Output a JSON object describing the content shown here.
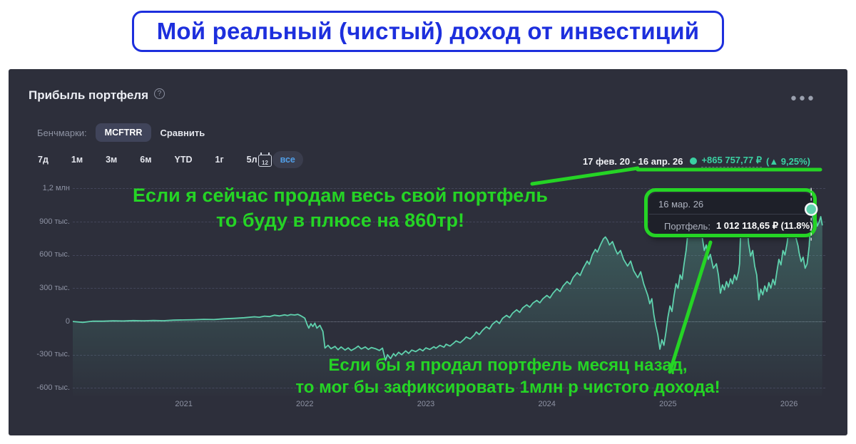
{
  "page": {
    "title": "Мой реальный (чистый) доход от инвестиций",
    "title_color": "#1d2fdd"
  },
  "panel": {
    "title": "Прибыль портфеля",
    "benchmarks_label": "Бенчмарки:",
    "benchmark_value": "MCFTRR",
    "compare_label": "Сравнить",
    "ranges": [
      "7д",
      "1м",
      "3м",
      "6м",
      "YTD",
      "1г",
      "5л",
      "все"
    ],
    "active_range": "все",
    "calendar_day": "12",
    "period": "17 фев. 20 - 16 апр. 26",
    "total_profit": "+865 757,77 ₽",
    "total_percent": "(▲ 9,25%)",
    "accent_teal": "#3bd0a2"
  },
  "tooltip": {
    "date": "16 мар. 26",
    "series_label": "Портфель:",
    "value": "1 012 118,65 ₽ (11.8%)"
  },
  "annotations": {
    "color": "#25d425",
    "note1_line1": "Если я сейчас продам весь свой портфель",
    "note1_line2": "то буду в плюсе на 860тр!",
    "note2_line1": "Если бы я продал портфель месяц назад,",
    "note2_line2": "то мог бы зафиксировать 1млн р чистого дохода!"
  },
  "chart_data": {
    "type": "area",
    "title": "Прибыль портфеля",
    "x_unit": "months since Feb 2020",
    "y_unit": "thousand RUB",
    "xlim": [
      0,
      74.6
    ],
    "ylim": [
      -668,
      1260
    ],
    "grid": true,
    "line_color": "#5fd1ad",
    "y_ticks": [
      {
        "label": "1,2 млн",
        "value": 1200
      },
      {
        "label": "900 тыс.",
        "value": 900
      },
      {
        "label": "600 тыс.",
        "value": 600
      },
      {
        "label": "300 тыс.",
        "value": 300
      },
      {
        "label": "0",
        "value": 0
      },
      {
        "label": "-300 тыс.",
        "value": -300
      },
      {
        "label": "-600 тыс.",
        "value": -600
      }
    ],
    "x_ticks": [
      {
        "label": "2021",
        "value": 11
      },
      {
        "label": "2022",
        "value": 23
      },
      {
        "label": "2023",
        "value": 35
      },
      {
        "label": "2024",
        "value": 47
      },
      {
        "label": "2025",
        "value": 59
      },
      {
        "label": "2026",
        "value": 71
      }
    ],
    "markers": [
      {
        "x": 73.2,
        "y": 1012,
        "label": "16 мар. 26",
        "value": "1 012 118,65 ₽ (11.8%)"
      }
    ],
    "end_point": {
      "x": 74.3,
      "y": 866,
      "label": "16 апр. 26",
      "value": "+865 757,77 ₽ (9,25%)"
    },
    "points": [
      [
        0,
        0
      ],
      [
        1,
        -8
      ],
      [
        2,
        3
      ],
      [
        3,
        2
      ],
      [
        4,
        6
      ],
      [
        5,
        4
      ],
      [
        6,
        8
      ],
      [
        7,
        6
      ],
      [
        8,
        9
      ],
      [
        9,
        7
      ],
      [
        10,
        12
      ],
      [
        11,
        14
      ],
      [
        12,
        16
      ],
      [
        13,
        19
      ],
      [
        14,
        17
      ],
      [
        15,
        24
      ],
      [
        16,
        28
      ],
      [
        17,
        34
      ],
      [
        18,
        42
      ],
      [
        18.5,
        38
      ],
      [
        19,
        48
      ],
      [
        19.5,
        44
      ],
      [
        20,
        56
      ],
      [
        20.5,
        50
      ],
      [
        21,
        60
      ],
      [
        21.3,
        54
      ],
      [
        21.6,
        62
      ],
      [
        22,
        58
      ],
      [
        22.3,
        64
      ],
      [
        22.6,
        52
      ],
      [
        23,
        30
      ],
      [
        23.2,
        -20
      ],
      [
        23.4,
        -60
      ],
      [
        23.6,
        -20
      ],
      [
        23.8,
        -45
      ],
      [
        24,
        -15
      ],
      [
        24.2,
        -60
      ],
      [
        24.5,
        -35
      ],
      [
        24.8,
        -90
      ],
      [
        25,
        -240
      ],
      [
        25.3,
        -215
      ],
      [
        25.6,
        -245
      ],
      [
        26,
        -225
      ],
      [
        26.3,
        -255
      ],
      [
        26.6,
        -230
      ],
      [
        27,
        -258
      ],
      [
        27.3,
        -238
      ],
      [
        27.6,
        -262
      ],
      [
        28,
        -242
      ],
      [
        28.3,
        -222
      ],
      [
        28.6,
        -248
      ],
      [
        29,
        -230
      ],
      [
        29.3,
        -252
      ],
      [
        29.6,
        -235
      ],
      [
        30,
        -245
      ],
      [
        30.4,
        -262
      ],
      [
        30.7,
        -240
      ],
      [
        31,
        -352
      ],
      [
        31.2,
        -300
      ],
      [
        31.5,
        -335
      ],
      [
        31.8,
        -290
      ],
      [
        32,
        -312
      ],
      [
        32.3,
        -278
      ],
      [
        32.6,
        -300
      ],
      [
        33,
        -265
      ],
      [
        33.3,
        -288
      ],
      [
        33.6,
        -258
      ],
      [
        34,
        -272
      ],
      [
        34.4,
        -248
      ],
      [
        34.7,
        -265
      ],
      [
        35,
        -238
      ],
      [
        35.4,
        -252
      ],
      [
        35.8,
        -228
      ],
      [
        36,
        -242
      ],
      [
        36.4,
        -215
      ],
      [
        36.8,
        -232
      ],
      [
        37,
        -205
      ],
      [
        37.4,
        -222
      ],
      [
        37.8,
        -192
      ],
      [
        38,
        -175
      ],
      [
        38.4,
        -192
      ],
      [
        38.8,
        -160
      ],
      [
        39,
        -140
      ],
      [
        39.4,
        -158
      ],
      [
        39.8,
        -122
      ],
      [
        40,
        -95
      ],
      [
        40.3,
        -118
      ],
      [
        40.6,
        -82
      ],
      [
        41,
        -48
      ],
      [
        41.3,
        -68
      ],
      [
        41.6,
        -25
      ],
      [
        42,
        5
      ],
      [
        42.3,
        -18
      ],
      [
        42.6,
        28
      ],
      [
        43,
        55
      ],
      [
        43.3,
        35
      ],
      [
        43.6,
        75
      ],
      [
        44,
        105
      ],
      [
        44.3,
        82
      ],
      [
        44.6,
        122
      ],
      [
        45,
        150
      ],
      [
        45.3,
        128
      ],
      [
        45.6,
        165
      ],
      [
        46,
        190
      ],
      [
        46.3,
        168
      ],
      [
        46.6,
        205
      ],
      [
        47,
        235
      ],
      [
        47.3,
        212
      ],
      [
        47.6,
        255
      ],
      [
        48,
        295
      ],
      [
        48.3,
        270
      ],
      [
        48.6,
        320
      ],
      [
        49,
        360
      ],
      [
        49.3,
        335
      ],
      [
        49.6,
        395
      ],
      [
        50,
        440
      ],
      [
        50.3,
        415
      ],
      [
        50.6,
        480
      ],
      [
        51,
        545
      ],
      [
        51.2,
        515
      ],
      [
        51.5,
        600
      ],
      [
        51.8,
        650
      ],
      [
        52,
        625
      ],
      [
        52.3,
        688
      ],
      [
        52.6,
        745
      ],
      [
        52.8,
        762
      ],
      [
        53,
        735
      ],
      [
        53.2,
        690
      ],
      [
        53.5,
        720
      ],
      [
        53.8,
        648
      ],
      [
        54,
        608
      ],
      [
        54.3,
        640
      ],
      [
        54.6,
        560
      ],
      [
        55,
        500
      ],
      [
        55.3,
        545
      ],
      [
        55.6,
        458
      ],
      [
        56,
        395
      ],
      [
        56.3,
        448
      ],
      [
        56.6,
        340
      ],
      [
        57,
        235
      ],
      [
        57.2,
        160
      ],
      [
        57.4,
        205
      ],
      [
        57.6,
        60
      ],
      [
        57.8,
        -40
      ],
      [
        58,
        -120
      ],
      [
        58.2,
        -250
      ],
      [
        58.4,
        -165
      ],
      [
        58.6,
        -215
      ],
      [
        58.8,
        -95
      ],
      [
        59,
        40
      ],
      [
        59.2,
        140
      ],
      [
        59.4,
        90
      ],
      [
        59.6,
        230
      ],
      [
        59.8,
        340
      ],
      [
        60,
        300
      ],
      [
        60.2,
        420
      ],
      [
        60.4,
        380
      ],
      [
        60.6,
        520
      ],
      [
        60.8,
        640
      ],
      [
        61,
        820
      ],
      [
        61.15,
        1040
      ],
      [
        61.3,
        930
      ],
      [
        61.5,
        985
      ],
      [
        61.7,
        860
      ],
      [
        61.9,
        905
      ],
      [
        62.1,
        760
      ],
      [
        62.3,
        815
      ],
      [
        62.6,
        640
      ],
      [
        62.8,
        690
      ],
      [
        63,
        560
      ],
      [
        63.2,
        605
      ],
      [
        63.5,
        480
      ],
      [
        63.8,
        520
      ],
      [
        64,
        420
      ],
      [
        64.2,
        255
      ],
      [
        64.4,
        330
      ],
      [
        64.6,
        285
      ],
      [
        64.8,
        360
      ],
      [
        65,
        310
      ],
      [
        65.2,
        385
      ],
      [
        65.4,
        340
      ],
      [
        65.6,
        420
      ],
      [
        65.8,
        375
      ],
      [
        66,
        450
      ],
      [
        66.1,
        520
      ],
      [
        66.25,
        945
      ],
      [
        66.4,
        850
      ],
      [
        66.55,
        905
      ],
      [
        66.7,
        800
      ],
      [
        66.85,
        860
      ],
      [
        67,
        700
      ],
      [
        67.2,
        590
      ],
      [
        67.4,
        640
      ],
      [
        67.6,
        500
      ],
      [
        67.8,
        420
      ],
      [
        68,
        195
      ],
      [
        68.2,
        290
      ],
      [
        68.4,
        240
      ],
      [
        68.6,
        320
      ],
      [
        68.8,
        270
      ],
      [
        69,
        350
      ],
      [
        69.2,
        300
      ],
      [
        69.4,
        380
      ],
      [
        69.6,
        330
      ],
      [
        69.8,
        450
      ],
      [
        70,
        560
      ],
      [
        70.2,
        510
      ],
      [
        70.4,
        640
      ],
      [
        70.6,
        600
      ],
      [
        70.8,
        700
      ],
      [
        71,
        840
      ],
      [
        71.15,
        950
      ],
      [
        71.3,
        890
      ],
      [
        71.5,
        820
      ],
      [
        71.7,
        750
      ],
      [
        71.9,
        680
      ],
      [
        72,
        620
      ],
      [
        72.2,
        540
      ],
      [
        72.4,
        580
      ],
      [
        72.6,
        480
      ],
      [
        72.8,
        520
      ],
      [
        73,
        680
      ],
      [
        73.2,
        1012
      ],
      [
        73.35,
        940
      ],
      [
        73.5,
        880
      ],
      [
        73.65,
        930
      ],
      [
        73.8,
        860
      ],
      [
        74,
        900
      ],
      [
        74.15,
        945
      ],
      [
        74.3,
        866
      ]
    ]
  }
}
